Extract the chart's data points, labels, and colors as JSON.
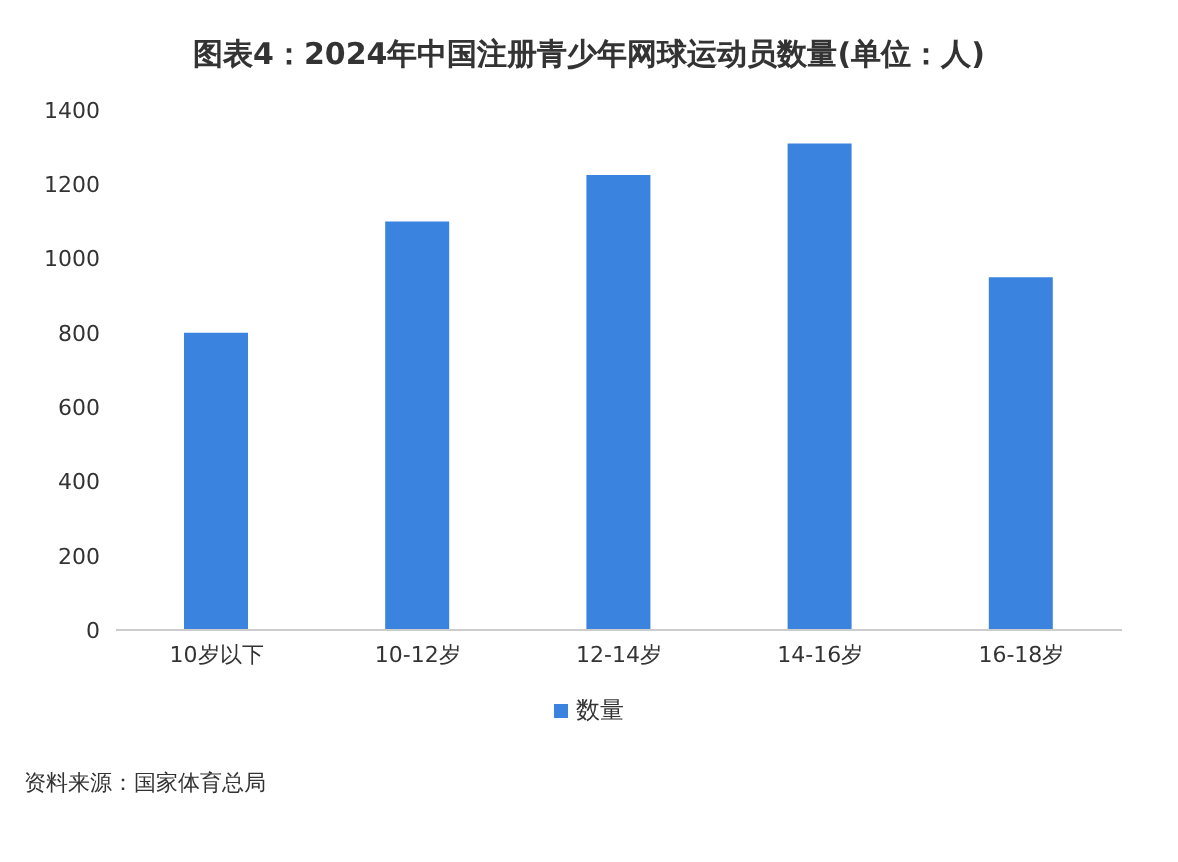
{
  "chart_data": {
    "type": "bar",
    "title": "图表4：2024年中国注册青少年网球运动员数量(单位：人)",
    "categories": [
      "10岁以下",
      "10-12岁",
      "12-14岁",
      "14-16岁",
      "16-18岁"
    ],
    "series": [
      {
        "name": "数量",
        "color": "#3a84e0",
        "values": [
          800,
          1100,
          1225,
          1310,
          950
        ]
      }
    ],
    "ylim": [
      0,
      1400
    ],
    "yticks": [
      0,
      200,
      400,
      600,
      800,
      1000,
      1200,
      1400
    ],
    "grid": false,
    "legend": "bottom",
    "annotations": [
      "资料来源：国家体育总局"
    ]
  }
}
